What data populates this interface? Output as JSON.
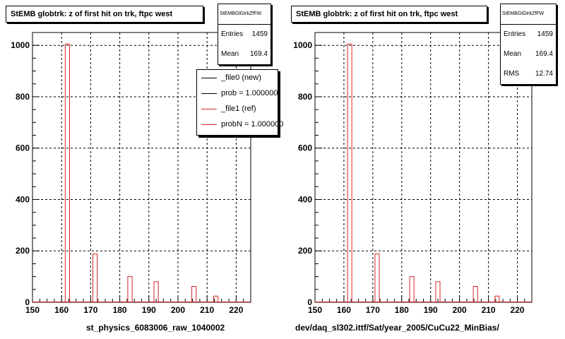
{
  "chart_data": [
    {
      "type": "bar",
      "title": "StEMB globtrk: z of first hit on trk, ftpc west",
      "stats": {
        "name": "StEMBGlGtrkZfFW",
        "rows": [
          {
            "label": "Entries",
            "value": "1459"
          },
          {
            "label": "Mean",
            "value": "169.4"
          }
        ]
      },
      "legend": [
        {
          "label": "_file0 (new)",
          "color": "#000000"
        },
        {
          "label": "prob = 1.000000",
          "color": "#000000"
        },
        {
          "label": "_file1 (ref)",
          "color": "#d62728"
        },
        {
          "label": "probN = 1.000000",
          "color": "#d62728"
        }
      ],
      "xlabel": "st_physics_6083006_raw_1040002",
      "xlim": [
        150,
        225
      ],
      "ylim": [
        0,
        1050
      ],
      "xticks": [
        "150",
        "160",
        "170",
        "180",
        "190",
        "200",
        "210",
        "220"
      ],
      "yticks": [
        "0",
        "200",
        "400",
        "600",
        "800",
        "1000"
      ],
      "bin_width": 1.5,
      "bins": [
        {
          "x": 162,
          "y": 1005
        },
        {
          "x": 171.5,
          "y": 188
        },
        {
          "x": 183.5,
          "y": 100
        },
        {
          "x": 192.5,
          "y": 80
        },
        {
          "x": 205.5,
          "y": 62
        },
        {
          "x": 213,
          "y": 24
        }
      ]
    },
    {
      "type": "bar",
      "title": "StEMB globtrk: z of first hit on trk, ftpc west",
      "stats": {
        "name": "StEMBGlGtrkZfFW",
        "rows": [
          {
            "label": "Entries",
            "value": "1459"
          },
          {
            "label": "Mean",
            "value": "169.4"
          },
          {
            "label": "RMS",
            "value": "12.74"
          }
        ]
      },
      "xlabel": "dev/daq_sl302.ittf/Sat/year_2005/CuCu22_MinBias/",
      "xlim": [
        150,
        225
      ],
      "ylim": [
        0,
        1050
      ],
      "xticks": [
        "150",
        "160",
        "170",
        "180",
        "190",
        "200",
        "210",
        "220"
      ],
      "yticks": [
        "0",
        "200",
        "400",
        "600",
        "800",
        "1000"
      ],
      "bin_width": 1.5,
      "bins": [
        {
          "x": 162,
          "y": 1005
        },
        {
          "x": 171.5,
          "y": 188
        },
        {
          "x": 183.5,
          "y": 100
        },
        {
          "x": 192.5,
          "y": 80
        },
        {
          "x": 205.5,
          "y": 62
        },
        {
          "x": 213,
          "y": 24
        }
      ]
    }
  ]
}
